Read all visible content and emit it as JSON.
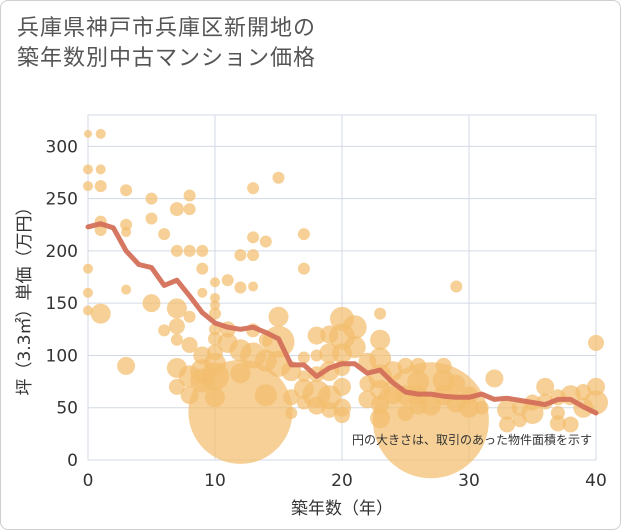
{
  "title_line1": "兵庫県神戸市兵庫区新開地の",
  "title_line2": "築年数別中古マンション価格",
  "chart_data": {
    "type": "scatter",
    "xlabel": "築年数（年）",
    "ylabel": "坪（3.3㎡）単価（万円）",
    "xlim": [
      0,
      40
    ],
    "ylim": [
      0,
      330
    ],
    "xticks": [
      0,
      10,
      20,
      30,
      40
    ],
    "yticks": [
      0,
      50,
      100,
      150,
      200,
      250,
      300
    ],
    "grid": true,
    "note": "円の大きさは、取引のあった物件面積を示す",
    "colors": {
      "bubble": "#f3be6e",
      "line": "#d4705a",
      "grid": "#d3dae4"
    },
    "bubbles": [
      [
        0,
        312,
        4
      ],
      [
        1,
        312,
        5
      ],
      [
        0,
        278,
        5
      ],
      [
        1,
        278,
        5
      ],
      [
        0,
        262,
        5
      ],
      [
        1,
        262,
        6
      ],
      [
        1,
        228,
        6
      ],
      [
        1,
        220,
        6
      ],
      [
        0,
        183,
        5
      ],
      [
        0,
        160,
        5
      ],
      [
        0,
        143,
        5
      ],
      [
        1,
        140,
        10
      ],
      [
        3,
        258,
        6
      ],
      [
        3,
        225,
        6
      ],
      [
        3,
        218,
        5
      ],
      [
        3,
        163,
        5
      ],
      [
        3,
        90,
        9
      ],
      [
        5,
        250,
        6
      ],
      [
        5,
        231,
        6
      ],
      [
        5,
        150,
        9
      ],
      [
        6,
        216,
        6
      ],
      [
        6,
        124,
        6
      ],
      [
        7,
        240,
        7
      ],
      [
        7,
        200,
        6
      ],
      [
        7,
        145,
        10
      ],
      [
        7,
        128,
        8
      ],
      [
        7,
        115,
        6
      ],
      [
        7,
        88,
        10
      ],
      [
        7,
        70,
        8
      ],
      [
        8,
        253,
        6
      ],
      [
        8,
        240,
        6
      ],
      [
        8,
        200,
        6
      ],
      [
        8,
        137,
        6
      ],
      [
        8,
        110,
        8
      ],
      [
        8,
        80,
        11
      ],
      [
        8,
        62,
        9
      ],
      [
        9,
        200,
        6
      ],
      [
        9,
        183,
        6
      ],
      [
        9,
        160,
        5
      ],
      [
        9,
        100,
        9
      ],
      [
        9,
        85,
        12
      ],
      [
        9,
        76,
        12
      ],
      [
        10,
        170,
        5
      ],
      [
        10,
        155,
        5
      ],
      [
        10,
        148,
        5
      ],
      [
        10,
        140,
        6
      ],
      [
        10,
        125,
        6
      ],
      [
        10,
        116,
        7
      ],
      [
        10,
        103,
        8
      ],
      [
        10,
        92,
        11
      ],
      [
        10,
        80,
        14
      ],
      [
        10,
        60,
        10
      ],
      [
        12,
        46,
        52
      ],
      [
        11,
        172,
        6
      ],
      [
        11,
        125,
        8
      ],
      [
        11,
        112,
        10
      ],
      [
        12,
        196,
        6
      ],
      [
        12,
        165,
        6
      ],
      [
        12,
        105,
        11
      ],
      [
        12,
        83,
        10
      ],
      [
        13,
        260,
        6
      ],
      [
        13,
        213,
        6
      ],
      [
        13,
        196,
        6
      ],
      [
        13,
        166,
        5
      ],
      [
        13,
        124,
        7
      ],
      [
        13,
        100,
        13
      ],
      [
        14,
        209,
        6
      ],
      [
        14,
        115,
        7
      ],
      [
        14,
        95,
        11
      ],
      [
        14,
        62,
        11
      ],
      [
        15,
        270,
        6
      ],
      [
        15,
        137,
        10
      ],
      [
        15,
        113,
        16
      ],
      [
        15,
        92,
        13
      ],
      [
        16,
        85,
        10
      ],
      [
        16,
        60,
        8
      ],
      [
        16,
        45,
        6
      ],
      [
        17,
        216,
        6
      ],
      [
        17,
        183,
        6
      ],
      [
        17,
        98,
        6
      ],
      [
        17,
        80,
        6
      ],
      [
        17,
        68,
        10
      ],
      [
        17,
        55,
        7
      ],
      [
        18,
        119,
        9
      ],
      [
        18,
        100,
        6
      ],
      [
        18,
        82,
        8
      ],
      [
        18,
        63,
        14
      ],
      [
        18,
        52,
        9
      ],
      [
        19,
        120,
        9
      ],
      [
        19,
        102,
        10
      ],
      [
        19,
        85,
        10
      ],
      [
        19,
        60,
        12
      ],
      [
        19,
        48,
        8
      ],
      [
        20,
        135,
        12
      ],
      [
        20,
        118,
        13
      ],
      [
        20,
        102,
        10
      ],
      [
        20,
        88,
        8
      ],
      [
        20,
        70,
        9
      ],
      [
        20,
        50,
        9
      ],
      [
        20,
        43,
        8
      ],
      [
        21,
        127,
        12
      ],
      [
        21,
        108,
        11
      ],
      [
        22,
        94,
        9
      ],
      [
        22,
        73,
        8
      ],
      [
        22,
        58,
        9
      ],
      [
        23,
        140,
        6
      ],
      [
        23,
        115,
        10
      ],
      [
        23,
        97,
        11
      ],
      [
        23,
        80,
        12
      ],
      [
        23,
        67,
        10
      ],
      [
        23,
        53,
        9
      ],
      [
        23,
        40,
        10
      ],
      [
        24,
        85,
        10
      ],
      [
        24,
        62,
        9
      ],
      [
        25,
        90,
        8
      ],
      [
        25,
        62,
        10
      ],
      [
        25,
        45,
        8
      ],
      [
        26,
        90,
        8
      ],
      [
        26,
        75,
        11
      ],
      [
        26,
        62,
        10
      ],
      [
        26,
        52,
        9
      ],
      [
        27,
        38,
        58
      ],
      [
        27,
        52,
        10
      ],
      [
        28,
        90,
        8
      ],
      [
        28,
        76,
        11
      ],
      [
        28,
        62,
        10
      ],
      [
        29,
        166,
        6
      ],
      [
        29,
        73,
        9
      ],
      [
        29,
        55,
        10
      ],
      [
        30,
        62,
        9
      ],
      [
        30,
        50,
        10
      ],
      [
        31,
        50,
        7
      ],
      [
        32,
        78,
        9
      ],
      [
        33,
        34,
        8
      ],
      [
        33,
        48,
        10
      ],
      [
        34,
        50,
        8
      ],
      [
        34,
        38,
        7
      ],
      [
        35,
        45,
        11
      ],
      [
        35,
        55,
        8
      ],
      [
        36,
        70,
        9
      ],
      [
        36,
        56,
        8
      ],
      [
        37,
        60,
        8
      ],
      [
        37,
        45,
        7
      ],
      [
        37,
        35,
        8
      ],
      [
        38,
        62,
        10
      ],
      [
        38,
        34,
        8
      ],
      [
        39,
        65,
        8
      ],
      [
        39,
        50,
        10
      ],
      [
        40,
        112,
        8
      ],
      [
        40,
        70,
        9
      ],
      [
        40,
        55,
        12
      ]
    ],
    "trend": {
      "x": [
        0,
        1,
        2,
        3,
        4,
        5,
        6,
        7,
        8,
        9,
        10,
        11,
        12,
        13,
        14,
        15,
        16,
        17,
        18,
        19,
        20,
        21,
        22,
        23,
        24,
        25,
        26,
        27,
        28,
        29,
        30,
        31,
        32,
        33,
        34,
        35,
        36,
        37,
        38,
        39,
        40
      ],
      "y": [
        223,
        226,
        222,
        200,
        187,
        184,
        167,
        172,
        157,
        141,
        131,
        127,
        125,
        127,
        122,
        116,
        91,
        91,
        80,
        88,
        92,
        92,
        83,
        86,
        74,
        65,
        63,
        63,
        61,
        60,
        60,
        63,
        58,
        59,
        57,
        55,
        53,
        58,
        58,
        51,
        45
      ]
    }
  }
}
